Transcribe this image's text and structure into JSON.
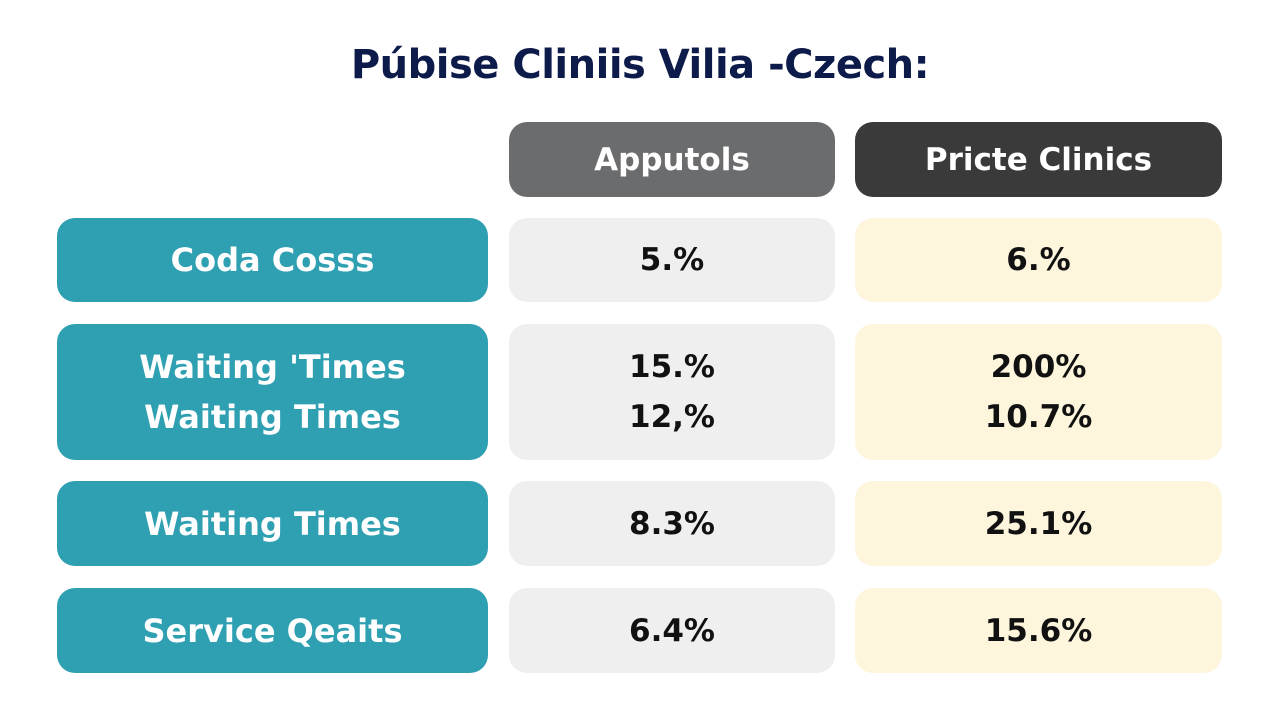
{
  "title": "Púbise Cliniis Vilia -Czech:",
  "table": {
    "header": [
      "Apputols",
      "Pricte Clinics"
    ],
    "rows": [
      [
        [
          "Coda Cosss"
        ],
        [
          "5.%"
        ],
        [
          "6.%"
        ]
      ],
      [
        [
          "Waiting 'Times",
          "Waiting Times"
        ],
        [
          "15.%",
          "12,%"
        ],
        [
          "200%",
          "10.7%"
        ]
      ],
      [
        [
          "Waiting Times"
        ],
        [
          "8.3%"
        ],
        [
          "25.1%"
        ]
      ],
      [
        [
          "Service Qeaits"
        ],
        [
          "6.4%"
        ],
        [
          "15.6%"
        ]
      ]
    ]
  }
}
